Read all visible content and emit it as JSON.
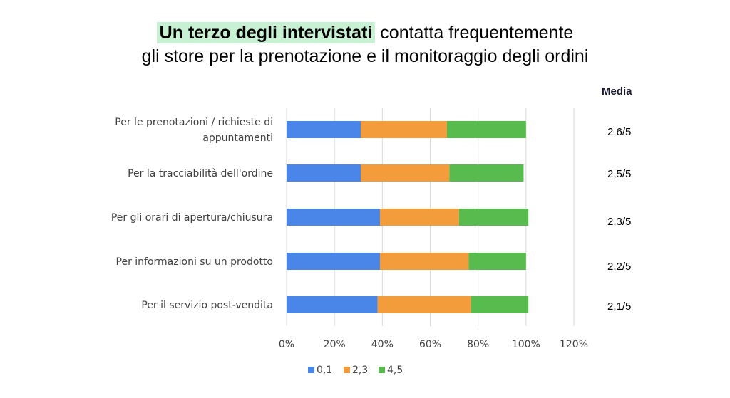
{
  "title": {
    "highlight": "Un terzo degli intervistati",
    "rest_line1": " contatta frequentemente",
    "line2": "gli store per la prenotazione e il monitoraggio degli ordini"
  },
  "media": {
    "header": "Media",
    "values": [
      "2,6/5",
      "2,5/5",
      "2,3/5",
      "2,2/5",
      "2,1/5"
    ]
  },
  "chart_data": {
    "type": "bar",
    "orientation": "horizontal",
    "stacked": true,
    "categories": [
      [
        "Per le prenotazioni / richieste di",
        "appuntamenti"
      ],
      [
        "Per la tracciabilità dell'ordine"
      ],
      [
        "Per gli orari di apertura/chiusura"
      ],
      [
        "Per informazioni su un prodotto"
      ],
      [
        "Per il servizio post-vendita"
      ]
    ],
    "series": [
      {
        "name": "0,1",
        "color": "#4a86e8",
        "values": [
          31,
          31,
          39,
          39,
          38
        ]
      },
      {
        "name": "2,3",
        "color": "#f39c3c",
        "values": [
          36,
          37,
          33,
          37,
          39
        ]
      },
      {
        "name": "4,5",
        "color": "#57bb4e",
        "values": [
          33,
          31,
          29,
          24,
          24
        ]
      }
    ],
    "xlim": [
      0,
      120
    ],
    "ticks": [
      "0%",
      "20%",
      "40%",
      "60%",
      "80%",
      "100%",
      "120%"
    ],
    "tick_values": [
      0,
      20,
      40,
      60,
      80,
      100,
      120
    ],
    "grid": "vertical",
    "legend": "bottom",
    "gridline_color": "#d9d9d9"
  }
}
